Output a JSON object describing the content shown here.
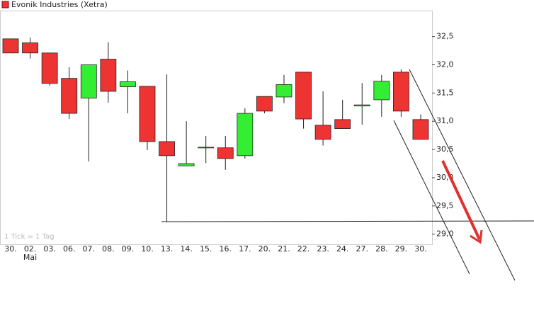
{
  "chart_data": {
    "type": "candlestick",
    "series": [
      {
        "name": "Evonik Industries (Xetra)",
        "open": [
          32.46,
          32.39,
          32.21,
          31.76,
          31.41,
          32.1,
          31.61,
          31.62,
          30.64,
          30.21,
          30.54,
          30.53,
          30.39,
          31.44,
          31.43,
          31.87,
          30.93,
          31.03,
          31.27,
          31.38,
          31.87,
          31.03
        ],
        "high": [
          32.46,
          32.48,
          32.21,
          31.96,
          32.0,
          32.4,
          31.9,
          31.62,
          31.83,
          31.0,
          30.74,
          30.74,
          31.23,
          31.44,
          31.82,
          31.87,
          31.53,
          31.38,
          31.68,
          31.82,
          31.92,
          31.12
        ],
        "low": [
          32.21,
          32.11,
          31.63,
          31.04,
          30.29,
          31.33,
          31.14,
          30.49,
          29.22,
          30.21,
          30.26,
          30.14,
          30.34,
          31.14,
          31.32,
          30.87,
          30.57,
          30.87,
          30.94,
          31.08,
          31.08,
          30.68
        ],
        "close": [
          32.21,
          32.21,
          31.67,
          31.14,
          32.0,
          31.53,
          31.7,
          30.64,
          30.39,
          30.25,
          30.54,
          30.34,
          31.14,
          31.18,
          31.65,
          31.04,
          30.68,
          30.87,
          31.29,
          31.71,
          31.18,
          30.68
        ]
      }
    ],
    "categories": [
      "30.",
      "02.",
      "03.",
      "06.",
      "07.",
      "08.",
      "09.",
      "10.",
      "13.",
      "14.",
      "15.",
      "16.",
      "17.",
      "20.",
      "21.",
      "22.",
      "23.",
      "24.",
      "27.",
      "28.",
      "29.",
      "30."
    ],
    "month_label": "Mai",
    "up_color": "#33ee33",
    "down_color": "#ee3333",
    "ylim": [
      28.82,
      32.96
    ],
    "yticks": [
      {
        "value": 29.0,
        "label": "29,0"
      },
      {
        "value": 29.5,
        "label": "29,5"
      },
      {
        "value": 30.0,
        "label": "30,0"
      },
      {
        "value": 30.5,
        "label": "30,5"
      },
      {
        "value": 31.0,
        "label": "31,0"
      },
      {
        "value": 31.5,
        "label": "31,5"
      },
      {
        "value": 32.0,
        "label": "32,0"
      },
      {
        "value": 32.5,
        "label": "32,5"
      }
    ],
    "annotation": "1 Tick = 1 Tag"
  }
}
